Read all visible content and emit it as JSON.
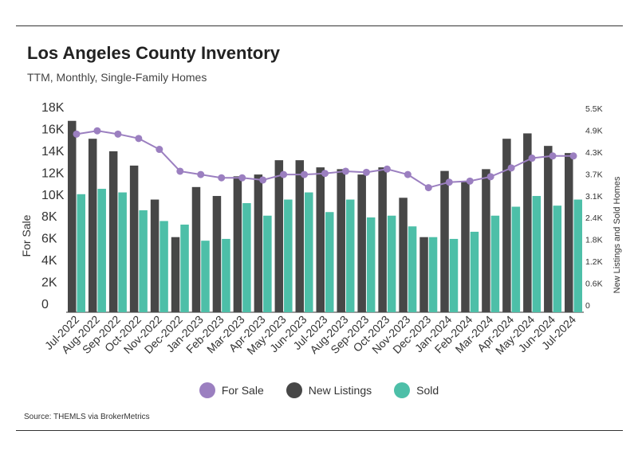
{
  "header": {
    "title": "Los Angeles County Inventory",
    "subtitle": "TTM, Monthly, Single-Family Homes"
  },
  "footer": {
    "source": "Source:  THEMLS via BrokerMetrics"
  },
  "colors": {
    "for_sale": "#9b7fc0",
    "new_listings": "#474747",
    "sold": "#4dbfa8"
  },
  "legend": [
    {
      "label": "For Sale",
      "color": "#9b7fc0"
    },
    {
      "label": "New Listings",
      "color": "#474747"
    },
    {
      "label": "Sold",
      "color": "#4dbfa8"
    }
  ],
  "chart_data": {
    "type": "bar",
    "categories": [
      "Jul-2022",
      "Aug-2022",
      "Sep-2022",
      "Oct-2022",
      "Nov-2022",
      "Dec-2022",
      "Jan-2023",
      "Feb-2023",
      "Mar-2023",
      "Apr-2023",
      "May-2023",
      "Jun-2023",
      "Jul-2023",
      "Aug-2023",
      "Sep-2023",
      "Oct-2023",
      "Nov-2023",
      "Dec-2023",
      "Jan-2024",
      "Feb-2024",
      "Mar-2024",
      "Apr-2024",
      "May-2024",
      "Jun-2024",
      "Jul-2024"
    ],
    "ylabel_left": "For Sale",
    "ylabel_right": "New Listings and Sold Homes",
    "y_left_ticks": [
      "0",
      "2K",
      "4K",
      "6K",
      "8K",
      "10K",
      "12K",
      "14K",
      "16K",
      "18K"
    ],
    "y_right_ticks": [
      "0",
      "0.6K",
      "1.2K",
      "1.8K",
      "2.4K",
      "3.1K",
      "3.7K",
      "4.3K",
      "4.9K",
      "5.5K"
    ],
    "ylim_left": [
      0,
      18000
    ],
    "ylim_right": [
      0,
      5500
    ],
    "grid": false,
    "legend_position": "bottom",
    "series": [
      {
        "name": "For Sale",
        "type": "line",
        "axis": "left",
        "values": [
          16300,
          16600,
          16300,
          15900,
          14900,
          12900,
          12600,
          12300,
          12300,
          12100,
          12600,
          12600,
          12700,
          12900,
          12800,
          13100,
          12600,
          11400,
          11900,
          12000,
          12400,
          13200,
          14100,
          14300,
          14300
        ]
      },
      {
        "name": "New Listings",
        "type": "bar",
        "axis": "right",
        "values": [
          5350,
          4850,
          4500,
          4100,
          3150,
          2100,
          3500,
          3250,
          3800,
          3850,
          4250,
          4250,
          4050,
          4000,
          3850,
          4050,
          3200,
          2100,
          3950,
          3650,
          4000,
          4850,
          5000,
          4650,
          4450
        ]
      },
      {
        "name": "Sold",
        "type": "bar",
        "axis": "right",
        "values": [
          3300,
          3450,
          3350,
          2850,
          2550,
          2450,
          2000,
          2050,
          3050,
          2700,
          3150,
          3350,
          2800,
          3150,
          2650,
          2700,
          2400,
          2100,
          2050,
          2250,
          2700,
          2950,
          3250,
          2980,
          3150
        ]
      }
    ]
  }
}
